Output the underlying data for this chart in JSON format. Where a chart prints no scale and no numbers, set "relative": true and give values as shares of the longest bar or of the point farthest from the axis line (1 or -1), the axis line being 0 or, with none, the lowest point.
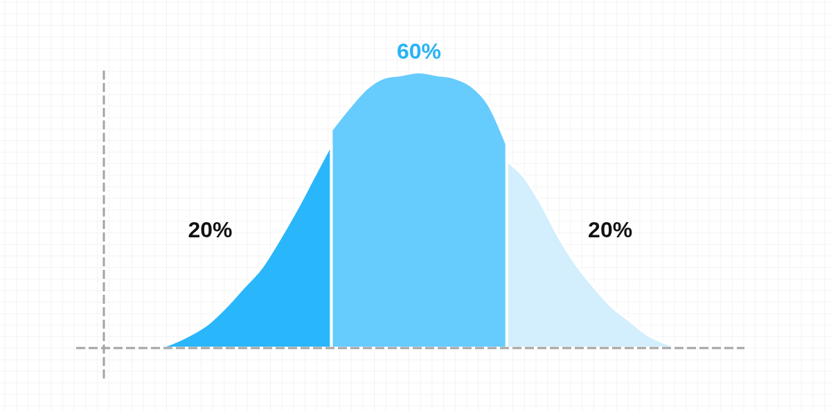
{
  "chart_data": {
    "type": "area",
    "relative": true,
    "categories": [
      null,
      null,
      null,
      null,
      null,
      null,
      null,
      null,
      null,
      null,
      null,
      null,
      null,
      null,
      null,
      null,
      null,
      null,
      null,
      null,
      null,
      null,
      null,
      null,
      null,
      null,
      null,
      null,
      null,
      null,
      null
    ],
    "series": [
      {
        "color": "#29b6fb",
        "values": [
          0,
          0.02,
          0.05,
          0.09,
          0.15,
          0.22,
          0.29,
          0.39,
          0.5,
          0.62,
          0.74,
          null,
          null,
          null,
          null,
          null,
          null,
          null,
          null,
          null,
          null,
          null,
          null,
          null,
          null,
          null,
          null,
          null,
          null,
          null,
          null
        ]
      },
      {
        "color": "#66cbfd",
        "values": [
          null,
          null,
          null,
          null,
          null,
          null,
          null,
          null,
          null,
          null,
          0.79,
          0.87,
          0.94,
          0.98,
          0.99,
          1,
          0.99,
          0.98,
          0.95,
          0.88,
          0.74,
          null,
          null,
          null,
          null,
          null,
          null,
          null,
          null,
          null,
          null
        ]
      },
      {
        "color": "#d3eefc",
        "values": [
          null,
          null,
          null,
          null,
          null,
          null,
          null,
          null,
          null,
          null,
          null,
          null,
          null,
          null,
          null,
          null,
          null,
          null,
          null,
          null,
          0.68,
          0.62,
          0.52,
          0.4,
          0.3,
          0.22,
          0.15,
          0.1,
          0.05,
          0.02,
          0
        ]
      }
    ],
    "annotations": [
      "20%",
      "60%",
      "20%"
    ]
  }
}
